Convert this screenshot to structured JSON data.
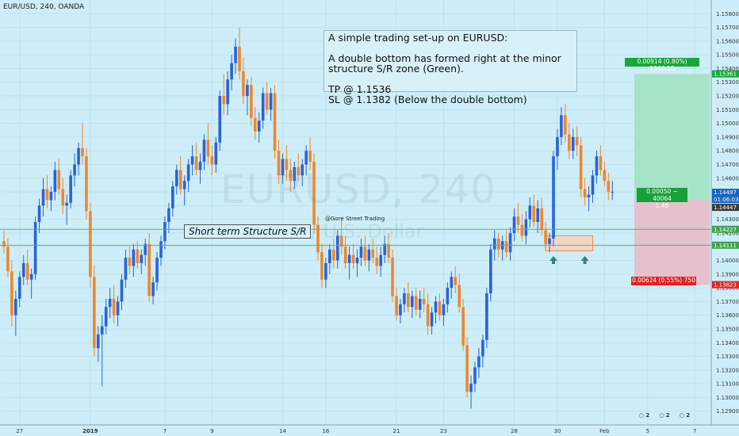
{
  "header": {
    "title": "EUR/USD, 240, OANDA"
  },
  "watermark": {
    "symbol": "EURUSD, 240",
    "name": "Euro / U.S. Dollar"
  },
  "note": {
    "text": "A simple trading set-up on EURUSD:\n\nA double bottom has formed right at the minor\nstructure S/R zone (Green).\n\nTP @ 1.1536\nSL @ 1.1382 (Below the double bottom)"
  },
  "sr_label": "Short term Structure S/R",
  "credit": "@Gore Street Trading",
  "position_tool": {
    "tp_label": "0.00914 (0.80%) 1366.18",
    "sl_label": "0.00624 (0.55%) 750",
    "mid_label_1": "0.00050 ~ 40064",
    "mid_label_2": "1.46",
    "entry": 1.14447,
    "tp": 1.15361,
    "sl": 1.13823
  },
  "price_tags": [
    {
      "text": "1.15361",
      "value": 1.15361,
      "color": "#18a83a"
    },
    {
      "text": "1.14497",
      "value": 1.14497,
      "color": "#1565c0"
    },
    {
      "text": "01:06:03",
      "value": 1.14447,
      "color": "#1565c0",
      "offset": 9
    },
    {
      "text": "1.14447",
      "value": 1.14447,
      "color": "#3c3c3c",
      "offset": 19
    },
    {
      "text": "1.14227",
      "value": 1.14227,
      "color": "#3fa34d"
    },
    {
      "text": "1.14111",
      "value": 1.14111,
      "color": "#3fa34d"
    },
    {
      "text": "1.13823",
      "value": 1.13823,
      "color": "#e52222"
    }
  ],
  "bottom_icons": [
    "2",
    "2",
    "2"
  ],
  "colors": {
    "up": "#2962d9",
    "down": "#f0862a",
    "sr_line": "#5fb35f",
    "tp_zone": "#a6e4c8",
    "sl_zone": "#e6c0cc"
  },
  "chart_data": {
    "type": "candlestick",
    "title": "EUR/USD, 240, OANDA",
    "ylim": [
      1.128,
      1.159
    ],
    "y_ticks": [
      1.129,
      1.13,
      1.131,
      1.132,
      1.133,
      1.134,
      1.135,
      1.136,
      1.137,
      1.138,
      1.139,
      1.14,
      1.141,
      1.142,
      1.143,
      1.144,
      1.145,
      1.146,
      1.147,
      1.148,
      1.149,
      1.15,
      1.151,
      1.152,
      1.153,
      1.154,
      1.155,
      1.156,
      1.157,
      1.158
    ],
    "y_tick_labels": [
      "1.12900",
      "1.13000",
      "1.13100",
      "1.13200",
      "1.13300",
      "1.13400",
      "1.13500",
      "1.13600",
      "1.13700",
      "1.13800",
      "1.13900",
      "1.14000",
      "1.14100",
      "1.14200",
      "1.14300",
      "1.14400",
      "1.14500",
      "1.14600",
      "1.14700",
      "1.14800",
      "1.14900",
      "1.15000",
      "1.15100",
      "1.15200",
      "1.15300",
      "1.15400",
      "1.15500",
      "1.15600",
      "1.15700",
      "1.15800"
    ],
    "x_ticks": [
      {
        "label": "27",
        "index": 4
      },
      {
        "label": "2019",
        "index": 22
      },
      {
        "label": "7",
        "index": 41
      },
      {
        "label": "9",
        "index": 53
      },
      {
        "label": "14",
        "index": 71
      },
      {
        "label": "16",
        "index": 82
      },
      {
        "label": "21",
        "index": 100
      },
      {
        "label": "23",
        "index": 112
      },
      {
        "label": "28",
        "index": 130
      },
      {
        "label": "30",
        "index": 141
      },
      {
        "label": "Feb",
        "index": 153
      },
      {
        "label": "5",
        "index": 164
      },
      {
        "label": "7",
        "index": 176
      }
    ],
    "support_lines": [
      1.14227,
      1.14111
    ],
    "double_bottom_box": {
      "x_start": 138,
      "x_end": 150,
      "y_low": 1.1407,
      "y_high": 1.1418
    },
    "candles_ohlc": [
      [
        1.1414,
        1.1422,
        1.1405,
        1.141
      ],
      [
        1.141,
        1.1416,
        1.1388,
        1.1392
      ],
      [
        1.1392,
        1.14,
        1.1352,
        1.136
      ],
      [
        1.136,
        1.1378,
        1.1345,
        1.1372
      ],
      [
        1.1372,
        1.1392,
        1.1366,
        1.1388
      ],
      [
        1.1388,
        1.1404,
        1.1382,
        1.1398
      ],
      [
        1.1398,
        1.1408,
        1.1382,
        1.1386
      ],
      [
        1.1386,
        1.1394,
        1.1372,
        1.139
      ],
      [
        1.139,
        1.1432,
        1.1386,
        1.1428
      ],
      [
        1.1428,
        1.1445,
        1.142,
        1.144
      ],
      [
        1.144,
        1.146,
        1.1432,
        1.1452
      ],
      [
        1.1452,
        1.1462,
        1.1438,
        1.1444
      ],
      [
        1.1444,
        1.1454,
        1.1436,
        1.145
      ],
      [
        1.145,
        1.1472,
        1.1444,
        1.1466
      ],
      [
        1.1466,
        1.1474,
        1.1448,
        1.1452
      ],
      [
        1.1452,
        1.146,
        1.1434,
        1.144
      ],
      [
        1.144,
        1.1448,
        1.1426,
        1.1442
      ],
      [
        1.1442,
        1.1466,
        1.1438,
        1.1462
      ],
      [
        1.1462,
        1.1478,
        1.1454,
        1.147
      ],
      [
        1.147,
        1.1486,
        1.1462,
        1.1482
      ],
      [
        1.1482,
        1.15,
        1.147,
        1.1476
      ],
      [
        1.1476,
        1.1482,
        1.143,
        1.1436
      ],
      [
        1.1436,
        1.1442,
        1.138,
        1.1388
      ],
      [
        1.1388,
        1.1396,
        1.133,
        1.1336
      ],
      [
        1.1336,
        1.1352,
        1.1326,
        1.1346
      ],
      [
        1.1346,
        1.136,
        1.1308,
        1.1352
      ],
      [
        1.1352,
        1.1372,
        1.1346,
        1.1366
      ],
      [
        1.1366,
        1.138,
        1.1358,
        1.1372
      ],
      [
        1.1372,
        1.1382,
        1.1354,
        1.136
      ],
      [
        1.136,
        1.1374,
        1.1352,
        1.137
      ],
      [
        1.137,
        1.139,
        1.1364,
        1.1386
      ],
      [
        1.1386,
        1.1408,
        1.138,
        1.1402
      ],
      [
        1.1402,
        1.141,
        1.139,
        1.1396
      ],
      [
        1.1396,
        1.1412,
        1.1388,
        1.1408
      ],
      [
        1.1408,
        1.1414,
        1.1394,
        1.1398
      ],
      [
        1.1398,
        1.1408,
        1.139,
        1.1404
      ],
      [
        1.1404,
        1.1416,
        1.1396,
        1.1412
      ],
      [
        1.1412,
        1.142,
        1.137,
        1.1374
      ],
      [
        1.1374,
        1.1388,
        1.1368,
        1.1384
      ],
      [
        1.1384,
        1.1406,
        1.1378,
        1.1402
      ],
      [
        1.1402,
        1.1418,
        1.1396,
        1.1414
      ],
      [
        1.1414,
        1.1432,
        1.1408,
        1.1428
      ],
      [
        1.1428,
        1.1442,
        1.142,
        1.1438
      ],
      [
        1.1438,
        1.1458,
        1.1432,
        1.1454
      ],
      [
        1.1454,
        1.147,
        1.1448,
        1.1466
      ],
      [
        1.1466,
        1.1476,
        1.1448,
        1.1452
      ],
      [
        1.1452,
        1.1462,
        1.144,
        1.1458
      ],
      [
        1.1458,
        1.1474,
        1.145,
        1.147
      ],
      [
        1.147,
        1.1484,
        1.1462,
        1.1476
      ],
      [
        1.1476,
        1.1486,
        1.1462,
        1.1466
      ],
      [
        1.1466,
        1.1478,
        1.1456,
        1.1472
      ],
      [
        1.1472,
        1.1492,
        1.1466,
        1.1488
      ],
      [
        1.1488,
        1.15,
        1.147,
        1.1476
      ],
      [
        1.1476,
        1.1484,
        1.1462,
        1.147
      ],
      [
        1.147,
        1.149,
        1.1464,
        1.1486
      ],
      [
        1.1486,
        1.1524,
        1.148,
        1.152
      ],
      [
        1.152,
        1.1536,
        1.1506,
        1.1514
      ],
      [
        1.1514,
        1.1538,
        1.1506,
        1.1532
      ],
      [
        1.1532,
        1.155,
        1.1524,
        1.1544
      ],
      [
        1.1544,
        1.1562,
        1.1536,
        1.1556
      ],
      [
        1.1556,
        1.157,
        1.1532,
        1.1538
      ],
      [
        1.1538,
        1.1548,
        1.1514,
        1.152
      ],
      [
        1.152,
        1.1532,
        1.1506,
        1.1528
      ],
      [
        1.1528,
        1.1534,
        1.1498,
        1.1504
      ],
      [
        1.1504,
        1.1512,
        1.1488,
        1.1494
      ],
      [
        1.1494,
        1.1508,
        1.1486,
        1.1502
      ],
      [
        1.1502,
        1.1526,
        1.1496,
        1.1522
      ],
      [
        1.1522,
        1.153,
        1.1506,
        1.151
      ],
      [
        1.151,
        1.1526,
        1.1502,
        1.1522
      ],
      [
        1.1522,
        1.1528,
        1.1474,
        1.148
      ],
      [
        1.148,
        1.1488,
        1.1456,
        1.1462
      ],
      [
        1.1462,
        1.1478,
        1.1456,
        1.1474
      ],
      [
        1.1474,
        1.1484,
        1.1458,
        1.1466
      ],
      [
        1.1466,
        1.1474,
        1.145,
        1.1458
      ],
      [
        1.1458,
        1.1472,
        1.1452,
        1.1468
      ],
      [
        1.1468,
        1.1478,
        1.1458,
        1.1462
      ],
      [
        1.1462,
        1.1474,
        1.1454,
        1.147
      ],
      [
        1.147,
        1.1484,
        1.1462,
        1.148
      ],
      [
        1.148,
        1.149,
        1.1466,
        1.1472
      ],
      [
        1.1472,
        1.1478,
        1.142,
        1.1426
      ],
      [
        1.1426,
        1.1432,
        1.14,
        1.1406
      ],
      [
        1.1406,
        1.1412,
        1.138,
        1.1386
      ],
      [
        1.1386,
        1.1402,
        1.138,
        1.1398
      ],
      [
        1.1398,
        1.1412,
        1.139,
        1.1408
      ],
      [
        1.1408,
        1.1416,
        1.1394,
        1.14
      ],
      [
        1.14,
        1.1422,
        1.1394,
        1.1418
      ],
      [
        1.1418,
        1.143,
        1.1404,
        1.141
      ],
      [
        1.141,
        1.1418,
        1.1394,
        1.1398
      ],
      [
        1.1398,
        1.141,
        1.1386,
        1.1404
      ],
      [
        1.1404,
        1.1412,
        1.1394,
        1.1398
      ],
      [
        1.1398,
        1.1408,
        1.1388,
        1.1402
      ],
      [
        1.1402,
        1.1416,
        1.1396,
        1.141
      ],
      [
        1.141,
        1.1418,
        1.1396,
        1.14
      ],
      [
        1.14,
        1.1412,
        1.1392,
        1.1408
      ],
      [
        1.1408,
        1.1416,
        1.1398,
        1.1402
      ],
      [
        1.1402,
        1.141,
        1.139,
        1.1396
      ],
      [
        1.1396,
        1.141,
        1.1388,
        1.1404
      ],
      [
        1.1404,
        1.1418,
        1.1398,
        1.1412
      ],
      [
        1.1412,
        1.142,
        1.1398,
        1.1402
      ],
      [
        1.1402,
        1.1408,
        1.137,
        1.1374
      ],
      [
        1.1374,
        1.138,
        1.1356,
        1.136
      ],
      [
        1.136,
        1.1372,
        1.1354,
        1.1368
      ],
      [
        1.1368,
        1.138,
        1.1362,
        1.1376
      ],
      [
        1.1376,
        1.1384,
        1.1362,
        1.1366
      ],
      [
        1.1366,
        1.1378,
        1.1358,
        1.1374
      ],
      [
        1.1374,
        1.138,
        1.136,
        1.1364
      ],
      [
        1.1364,
        1.1378,
        1.1358,
        1.1372
      ],
      [
        1.1372,
        1.138,
        1.1362,
        1.1368
      ],
      [
        1.1368,
        1.1376,
        1.1346,
        1.1352
      ],
      [
        1.1352,
        1.1366,
        1.1346,
        1.1362
      ],
      [
        1.1362,
        1.1374,
        1.1354,
        1.137
      ],
      [
        1.137,
        1.1376,
        1.1356,
        1.136
      ],
      [
        1.136,
        1.1372,
        1.1352,
        1.1368
      ],
      [
        1.1368,
        1.1384,
        1.1362,
        1.138
      ],
      [
        1.138,
        1.1392,
        1.1372,
        1.1388
      ],
      [
        1.1388,
        1.1396,
        1.1376,
        1.1382
      ],
      [
        1.1382,
        1.139,
        1.1362,
        1.1366
      ],
      [
        1.1366,
        1.1372,
        1.1334,
        1.1338
      ],
      [
        1.1338,
        1.1344,
        1.13,
        1.1304
      ],
      [
        1.1304,
        1.1316,
        1.1292,
        1.131
      ],
      [
        1.131,
        1.1326,
        1.1304,
        1.1322
      ],
      [
        1.1322,
        1.1336,
        1.1314,
        1.133
      ],
      [
        1.133,
        1.1346,
        1.1322,
        1.1342
      ],
      [
        1.1342,
        1.138,
        1.1336,
        1.1376
      ],
      [
        1.1376,
        1.1412,
        1.137,
        1.1408
      ],
      [
        1.1408,
        1.1422,
        1.14,
        1.1416
      ],
      [
        1.1416,
        1.142,
        1.1402,
        1.1408
      ],
      [
        1.1408,
        1.1418,
        1.14,
        1.1414
      ],
      [
        1.1414,
        1.1422,
        1.1402,
        1.1406
      ],
      [
        1.1406,
        1.1424,
        1.14,
        1.142
      ],
      [
        1.142,
        1.1438,
        1.1414,
        1.1432
      ],
      [
        1.1432,
        1.1442,
        1.142,
        1.1426
      ],
      [
        1.1426,
        1.1434,
        1.1414,
        1.1418
      ],
      [
        1.1418,
        1.1436,
        1.1412,
        1.143
      ],
      [
        1.143,
        1.1446,
        1.1424,
        1.144
      ],
      [
        1.144,
        1.1448,
        1.1424,
        1.1428
      ],
      [
        1.1428,
        1.1444,
        1.142,
        1.1438
      ],
      [
        1.1438,
        1.1446,
        1.1418,
        1.1422
      ],
      [
        1.1422,
        1.1428,
        1.1408,
        1.1412
      ],
      [
        1.1412,
        1.142,
        1.1406,
        1.1416
      ],
      [
        1.1416,
        1.148,
        1.141,
        1.1476
      ],
      [
        1.1476,
        1.1496,
        1.1466,
        1.149
      ],
      [
        1.149,
        1.1512,
        1.1484,
        1.1506
      ],
      [
        1.1506,
        1.1514,
        1.1486,
        1.1492
      ],
      [
        1.1492,
        1.15,
        1.1474,
        1.148
      ],
      [
        1.148,
        1.1496,
        1.1474,
        1.149
      ],
      [
        1.149,
        1.1498,
        1.1476,
        1.1484
      ],
      [
        1.1484,
        1.149,
        1.1446,
        1.1452
      ],
      [
        1.1452,
        1.146,
        1.144,
        1.1446
      ],
      [
        1.1446,
        1.1454,
        1.1436,
        1.1448
      ],
      [
        1.1448,
        1.1466,
        1.1442,
        1.1462
      ],
      [
        1.1462,
        1.148,
        1.1456,
        1.1476
      ],
      [
        1.1476,
        1.1484,
        1.1462,
        1.1466
      ],
      [
        1.1466,
        1.1472,
        1.1454,
        1.1458
      ],
      [
        1.1458,
        1.1464,
        1.1444,
        1.145
      ],
      [
        1.145,
        1.1458,
        1.1444,
        1.145
      ]
    ]
  }
}
